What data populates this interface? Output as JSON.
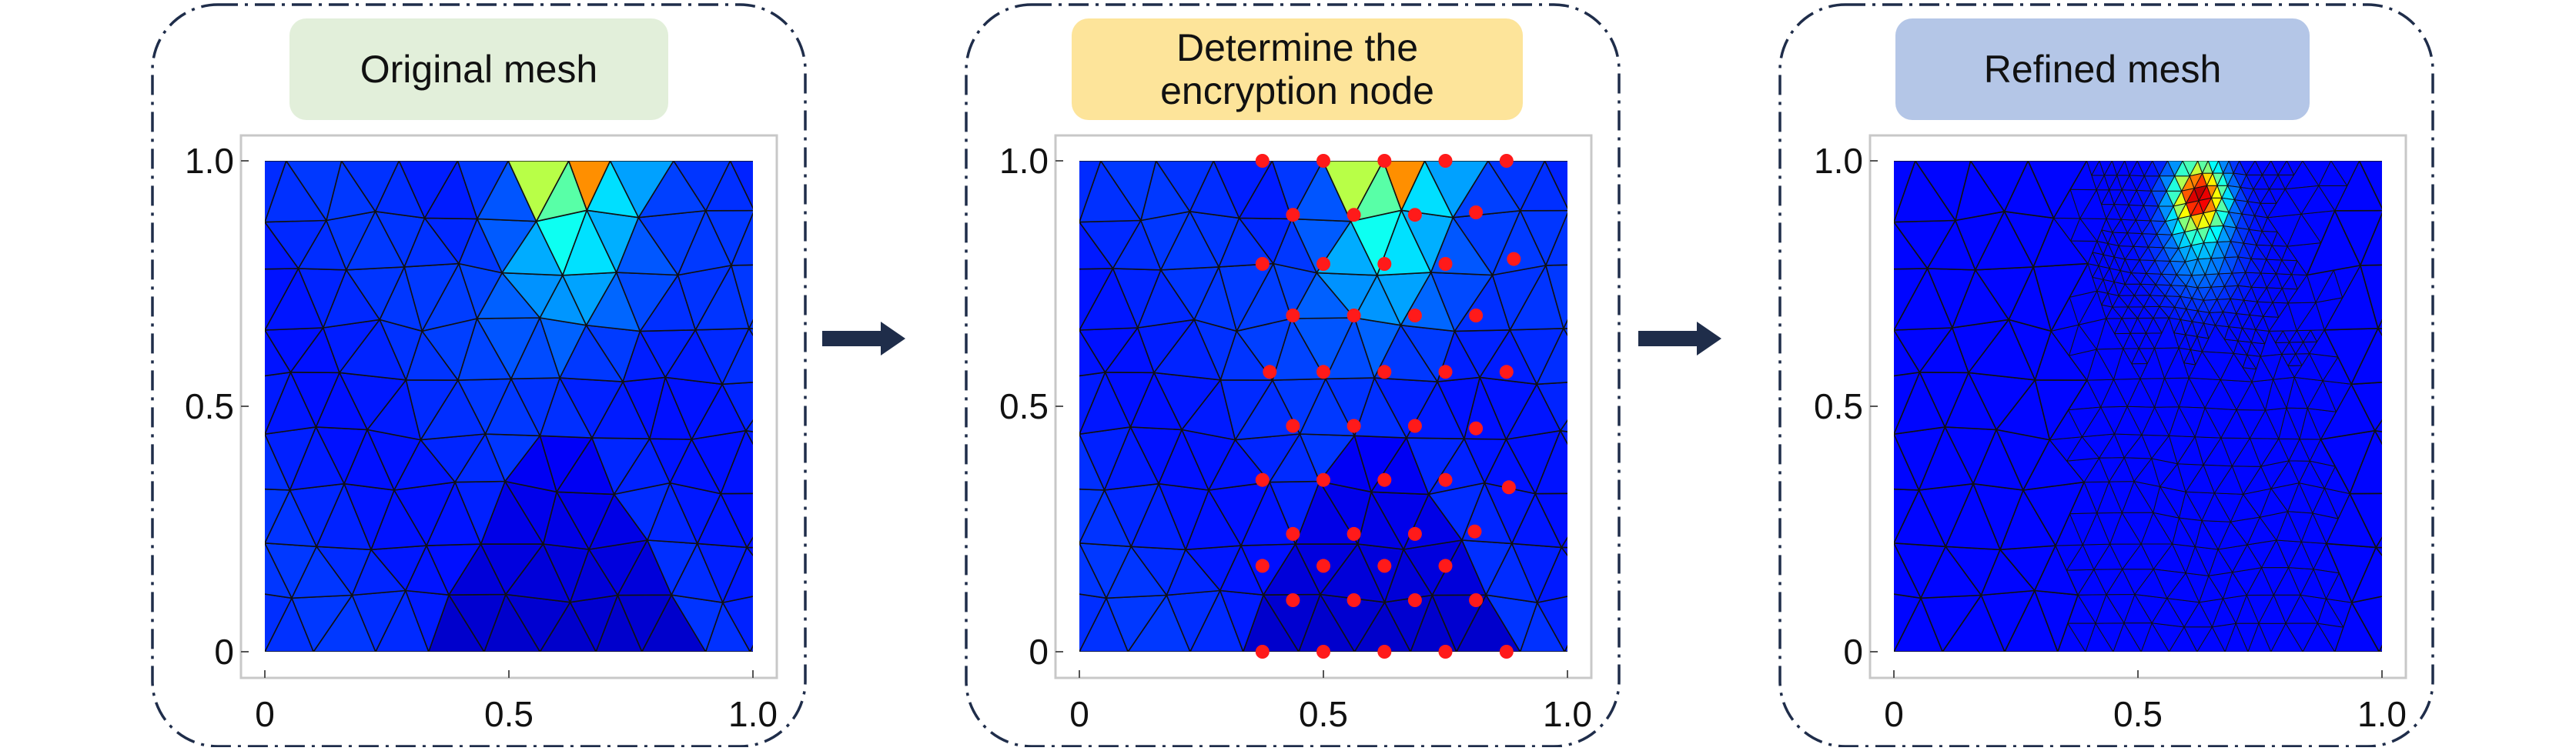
{
  "panels": [
    {
      "title": "Original mesh",
      "title_bg": "#e2efda",
      "mode": "original"
    },
    {
      "title": "Determine the\nencryption node",
      "title_bg": "#fde49a",
      "mode": "nodes"
    },
    {
      "title": "Refined mesh",
      "title_bg": "#b4c6e7",
      "mode": "refined"
    }
  ],
  "axes": {
    "x_ticks": [
      "0",
      "0.5",
      "1.0"
    ],
    "y_ticks": [
      "0",
      "0.5",
      "1.0"
    ],
    "x_values": [
      0,
      0.5,
      1.0
    ],
    "y_values": [
      0,
      0.5,
      1.0
    ],
    "xlim": [
      0,
      1
    ],
    "ylim": [
      0,
      1
    ]
  },
  "colors": {
    "border": "#1f2d4a",
    "arrow": "#1f2d4a",
    "node": "#ff1a1a",
    "mesh_line": "#111111"
  },
  "encryption_nodes": [
    [
      0.375,
      1.0
    ],
    [
      0.5,
      1.0
    ],
    [
      0.625,
      1.0
    ],
    [
      0.75,
      1.0
    ],
    [
      0.875,
      1.0
    ],
    [
      0.4375,
      0.89
    ],
    [
      0.5625,
      0.89
    ],
    [
      0.6875,
      0.89
    ],
    [
      0.8125,
      0.895
    ],
    [
      0.375,
      0.79
    ],
    [
      0.5,
      0.79
    ],
    [
      0.625,
      0.79
    ],
    [
      0.75,
      0.79
    ],
    [
      0.89,
      0.8
    ],
    [
      0.4375,
      0.685
    ],
    [
      0.5625,
      0.685
    ],
    [
      0.6875,
      0.685
    ],
    [
      0.8125,
      0.685
    ],
    [
      0.39,
      0.57
    ],
    [
      0.5,
      0.57
    ],
    [
      0.625,
      0.57
    ],
    [
      0.75,
      0.57
    ],
    [
      0.875,
      0.57
    ],
    [
      0.4375,
      0.46
    ],
    [
      0.5625,
      0.46
    ],
    [
      0.6875,
      0.46
    ],
    [
      0.8125,
      0.455
    ],
    [
      0.375,
      0.35
    ],
    [
      0.5,
      0.35
    ],
    [
      0.625,
      0.35
    ],
    [
      0.75,
      0.35
    ],
    [
      0.88,
      0.335
    ],
    [
      0.4375,
      0.24
    ],
    [
      0.5625,
      0.24
    ],
    [
      0.6875,
      0.24
    ],
    [
      0.81,
      0.245
    ],
    [
      0.375,
      0.175
    ],
    [
      0.5,
      0.175
    ],
    [
      0.625,
      0.175
    ],
    [
      0.75,
      0.175
    ],
    [
      0.4375,
      0.105
    ],
    [
      0.5625,
      0.105
    ],
    [
      0.6875,
      0.105
    ],
    [
      0.8125,
      0.105
    ],
    [
      0.375,
      0.0
    ],
    [
      0.5,
      0.0
    ],
    [
      0.625,
      0.0
    ],
    [
      0.75,
      0.0
    ],
    [
      0.875,
      0.0
    ]
  ]
}
